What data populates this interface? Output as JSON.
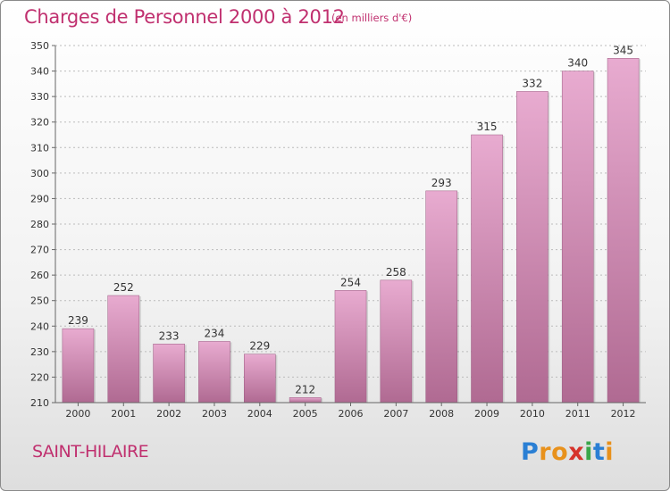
{
  "header": {
    "title": "Charges de Personnel 2000 à 2012",
    "subtitle": "(en milliers d'€)"
  },
  "footer": {
    "town": "SAINT-HILAIRE",
    "logo_letters": [
      {
        "char": "P",
        "color": "#2a7fd4"
      },
      {
        "char": "r",
        "color": "#e8911c"
      },
      {
        "char": "o",
        "color": "#e8911c"
      },
      {
        "char": "x",
        "color": "#d6332b"
      },
      {
        "char": "i",
        "color": "#3aa64a"
      },
      {
        "char": "t",
        "color": "#2a7fd4"
      },
      {
        "char": "i",
        "color": "#e8911c"
      }
    ]
  },
  "colors": {
    "accent": "#c0306f",
    "bar_top": "#e8abd0",
    "bar_bottom": "#b06a92",
    "grid": "#bbbbbb"
  },
  "chart_data": {
    "type": "bar",
    "title": "Charges de Personnel 2000 à 2012",
    "subtitle": "(en milliers d'€)",
    "categories": [
      "2000",
      "2001",
      "2002",
      "2003",
      "2004",
      "2005",
      "2006",
      "2007",
      "2008",
      "2009",
      "2010",
      "2011",
      "2012"
    ],
    "values": [
      239,
      252,
      233,
      234,
      229,
      212,
      254,
      258,
      293,
      315,
      332,
      340,
      345
    ],
    "ylim": [
      210,
      350
    ],
    "yticks": [
      210,
      220,
      230,
      240,
      250,
      260,
      270,
      280,
      290,
      300,
      310,
      320,
      330,
      340,
      350
    ],
    "grid": "horizontal-dashed",
    "legend": "none"
  }
}
